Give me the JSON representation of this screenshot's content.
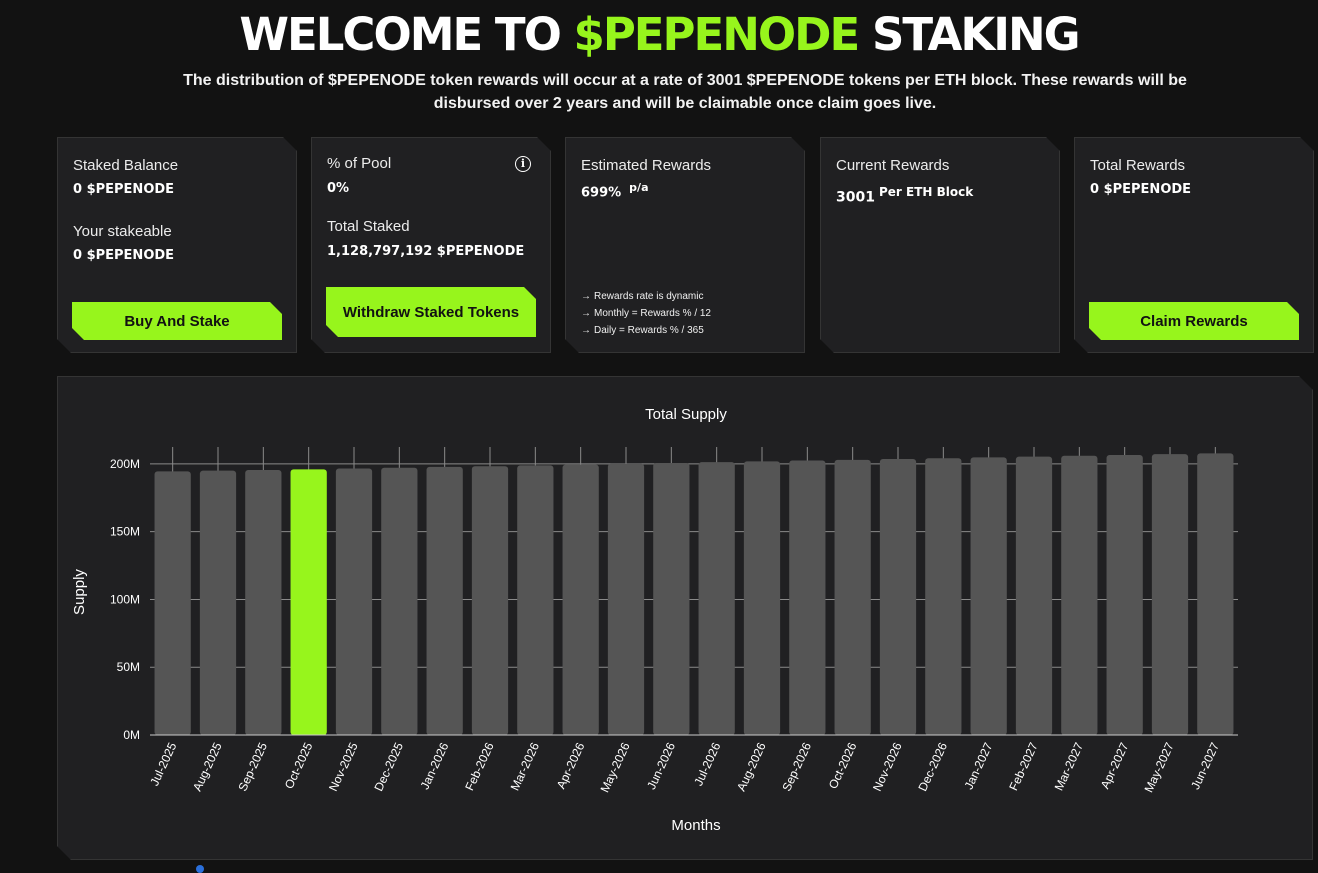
{
  "hero": {
    "title_prefix": "WELCOME TO ",
    "title_accent": "$PEPENODE",
    "title_suffix": " STAKING",
    "desc_1": "The distribution of ",
    "desc_token": "$PEPENODE",
    "desc_2": " token rewards will occur at a rate of 3001 $PEPENODE tokens per ETH block. These rewards will be disbursed over 2 years and will be claimable once claim goes live."
  },
  "cards": {
    "staked": {
      "label": "Staked Balance",
      "value": "0 $PEPENODE",
      "stakeable_label": "Your stakeable",
      "stakeable_value": "0 $PEPENODE",
      "button": "Buy And Stake"
    },
    "pool": {
      "label": "% of Pool",
      "value": "0%",
      "info_icon": "i",
      "total_label": "Total Staked",
      "total_value": "1,128,797,192 $PEPENODE",
      "button": "Withdraw Staked Tokens"
    },
    "estimated": {
      "label": "Estimated Rewards",
      "value": "699%",
      "suffix": "p/a",
      "notes": [
        "Rewards rate is dynamic",
        "Monthly = Rewards % / 12",
        "Daily = Rewards % / 365"
      ],
      "arrow": "→"
    },
    "current": {
      "label": "Current Rewards",
      "value": "3001",
      "suffix": "Per ETH Block"
    },
    "total": {
      "label": "Total Rewards",
      "value": "0 $PEPENODE",
      "button": "Claim Rewards"
    }
  },
  "colors": {
    "accent": "#97f51c",
    "bar": "#555555",
    "background": "#121212",
    "card": "#202022"
  },
  "chart_data": {
    "type": "bar",
    "title": "Total Supply",
    "xlabel": "Months",
    "ylabel": "Supply",
    "ylim": [
      0,
      200000000
    ],
    "y_ticks": [
      0,
      50000000,
      100000000,
      150000000,
      200000000
    ],
    "y_tick_labels": [
      "0M",
      "50M",
      "100M",
      "150M",
      "200M"
    ],
    "grid": true,
    "highlight_index": 3,
    "categories": [
      "Jul-2025",
      "Aug-2025",
      "Sep-2025",
      "Oct-2025",
      "Nov-2025",
      "Dec-2025",
      "Jan-2026",
      "Feb-2026",
      "Mar-2026",
      "Apr-2026",
      "May-2026",
      "Jun-2026",
      "Jul-2026",
      "Aug-2026",
      "Sep-2026",
      "Oct-2026",
      "Nov-2026",
      "Dec-2026",
      "Jan-2027",
      "Feb-2027",
      "Mar-2027",
      "Apr-2027",
      "May-2027",
      "Jun-2027"
    ],
    "values": [
      194500000,
      195000000,
      195500000,
      196000000,
      196600000,
      197200000,
      197800000,
      198300000,
      198900000,
      199500000,
      200100000,
      200700000,
      201300000,
      201900000,
      202500000,
      203000000,
      203600000,
      204200000,
      204800000,
      205400000,
      206000000,
      206600000,
      207200000,
      207800000
    ]
  }
}
